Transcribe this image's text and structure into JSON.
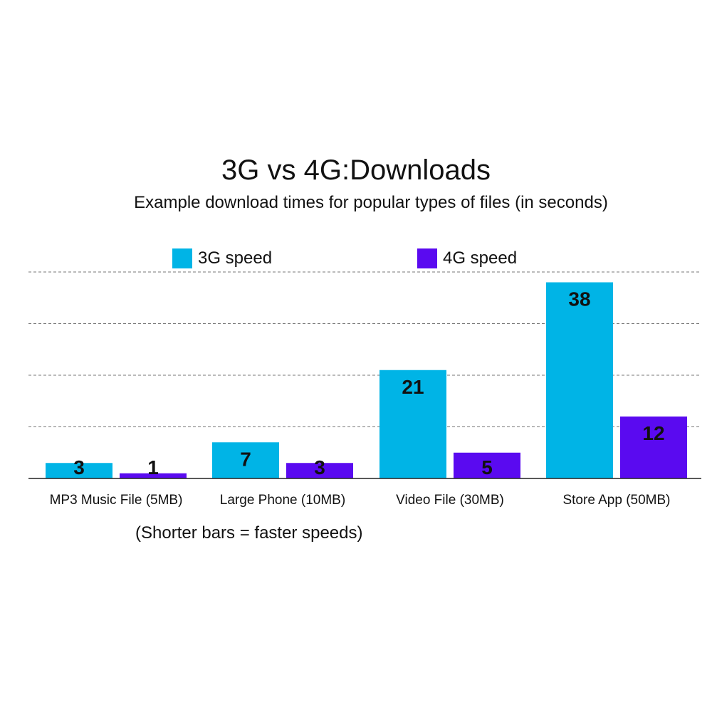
{
  "chart_data": {
    "type": "bar",
    "title": "3G vs 4G:Downloads",
    "subtitle": "Example download times for popular types of files (in seconds)",
    "categories": [
      "MP3 Music File (5MB)",
      "Large Phone (10MB)",
      "Video File (30MB)",
      "Store App (50MB)"
    ],
    "series": [
      {
        "name": "3G speed",
        "color": "#00b4e6",
        "values": [
          3,
          7,
          21,
          38
        ]
      },
      {
        "name": "4G speed",
        "color": "#5a0af0",
        "values": [
          1,
          3,
          5,
          12
        ]
      }
    ],
    "ylim": [
      0,
      40
    ],
    "grid": true,
    "grid_style": "dashed",
    "legend_placement": "top",
    "note": "(Shorter bars = faster speeds)"
  }
}
